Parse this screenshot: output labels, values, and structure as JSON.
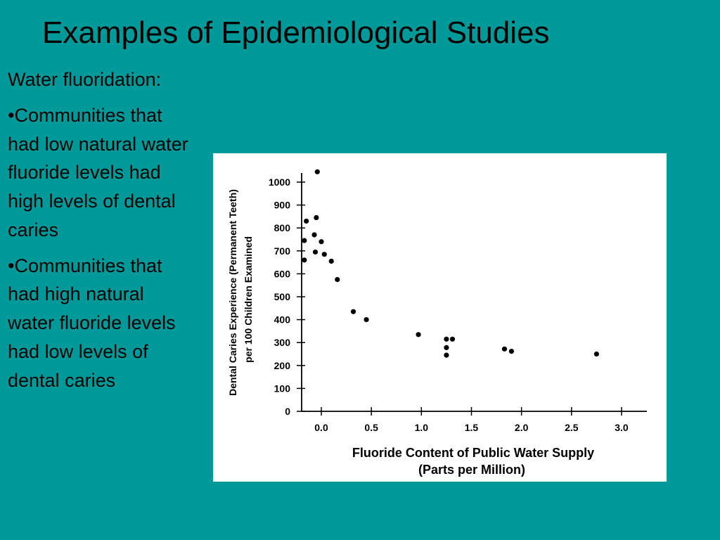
{
  "slide": {
    "title": "Examples of Epidemiological Studies",
    "intro": "Water fluoridation:",
    "bullets": [
      "•Communities that had low natural water fluoride levels had high levels of dental caries",
      "•Communities that had high natural water fluoride levels had low levels of dental caries"
    ]
  },
  "colors": {
    "background": "#009999",
    "panel": "#ffffff",
    "ink": "#000000"
  },
  "chart_data": {
    "type": "scatter",
    "title": "",
    "xlabel_line1": "Fluoride Content of Public Water Supply",
    "xlabel_line2": "(Parts per Million)",
    "ylabel_line1": "Dental Caries Experience (Permanent Teeth)",
    "ylabel_line2": "per 100 Children Examined",
    "xlim": [
      -0.2,
      3.2
    ],
    "ylim": [
      0,
      1050
    ],
    "xticks": [
      0.0,
      0.5,
      1.0,
      1.5,
      2.0,
      2.5,
      3.0
    ],
    "xtick_labels": [
      "0.0",
      "0.5",
      "1.0",
      "1.5",
      "2.0",
      "2.5",
      "3.0"
    ],
    "yticks": [
      0,
      100,
      200,
      300,
      400,
      500,
      600,
      700,
      800,
      900,
      1000
    ],
    "ytick_labels": [
      "0",
      "100",
      "200",
      "300",
      "400",
      "500",
      "600",
      "700",
      "800",
      "900",
      "1000"
    ],
    "grid": false,
    "points": [
      {
        "x": -0.04,
        "y": 1045
      },
      {
        "x": -0.15,
        "y": 830
      },
      {
        "x": -0.05,
        "y": 845
      },
      {
        "x": -0.07,
        "y": 770
      },
      {
        "x": -0.17,
        "y": 745
      },
      {
        "x": 0.0,
        "y": 740
      },
      {
        "x": -0.06,
        "y": 695
      },
      {
        "x": 0.03,
        "y": 685
      },
      {
        "x": 0.1,
        "y": 655
      },
      {
        "x": -0.17,
        "y": 660
      },
      {
        "x": 0.16,
        "y": 575
      },
      {
        "x": 0.32,
        "y": 435
      },
      {
        "x": 0.45,
        "y": 400
      },
      {
        "x": 0.97,
        "y": 335
      },
      {
        "x": 1.25,
        "y": 315
      },
      {
        "x": 1.31,
        "y": 315
      },
      {
        "x": 1.25,
        "y": 278
      },
      {
        "x": 1.25,
        "y": 245
      },
      {
        "x": 1.83,
        "y": 272
      },
      {
        "x": 1.9,
        "y": 262
      },
      {
        "x": 2.75,
        "y": 250
      }
    ]
  }
}
